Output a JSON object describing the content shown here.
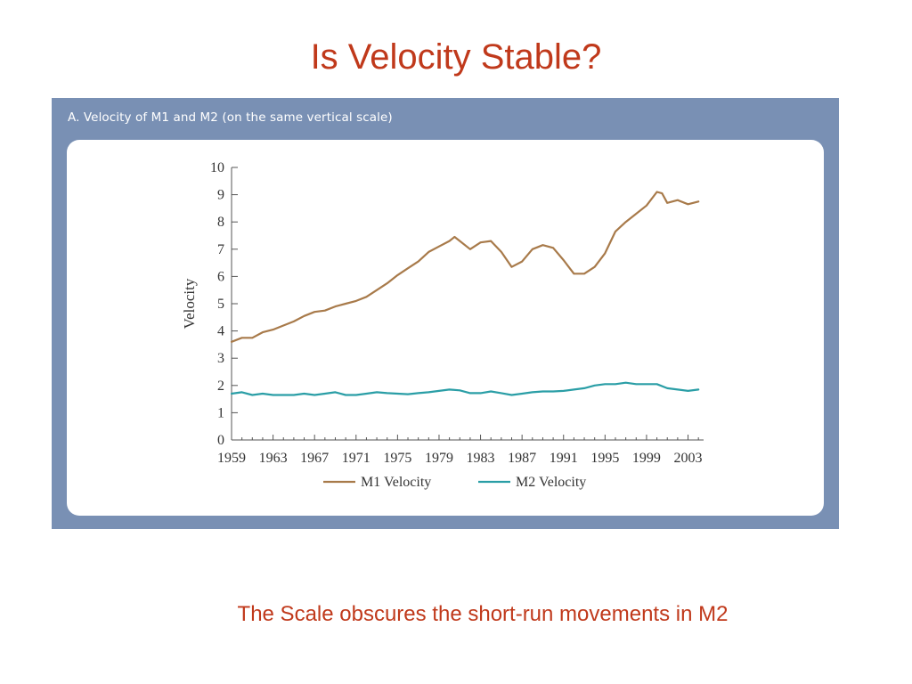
{
  "slide": {
    "title": "Is Velocity Stable?",
    "caption": "The Scale obscures the short-run movements in M2"
  },
  "colors": {
    "title_text": "#c0391b",
    "frame_background": "#7990b4",
    "m1_line": "#a87a4a",
    "m2_line": "#2a9ea6",
    "axis": "#555555"
  },
  "chart_data": {
    "type": "line",
    "title": "A. Velocity of M1 and M2 (on the same vertical scale)",
    "xlabel": "",
    "ylabel": "Velocity",
    "ylim": [
      0,
      10
    ],
    "xlim": [
      1959,
      2004.5
    ],
    "yticks": [
      "0",
      "1",
      "2",
      "3",
      "4",
      "5",
      "6",
      "7",
      "8",
      "9",
      "10"
    ],
    "xticks": [
      "1959",
      "1963",
      "1967",
      "1971",
      "1975",
      "1979",
      "1983",
      "1987",
      "1991",
      "1995",
      "1999",
      "2003"
    ],
    "grid": false,
    "legend_position": "bottom",
    "series": [
      {
        "name": "M1 Velocity",
        "x": [
          1959,
          1960,
          1961,
          1962,
          1963,
          1964,
          1965,
          1966,
          1967,
          1968,
          1969,
          1970,
          1971,
          1972,
          1973,
          1974,
          1975,
          1976,
          1977,
          1978,
          1979,
          1980,
          1980.5,
          1981,
          1982,
          1983,
          1984,
          1985,
          1986,
          1987,
          1988,
          1989,
          1990,
          1991,
          1992,
          1993,
          1994,
          1995,
          1996,
          1997,
          1998,
          1999,
          2000,
          2000.5,
          2001,
          2002,
          2003,
          2004
        ],
        "y": [
          3.6,
          3.75,
          3.75,
          3.95,
          4.05,
          4.2,
          4.35,
          4.55,
          4.7,
          4.75,
          4.9,
          5.0,
          5.1,
          5.25,
          5.5,
          5.75,
          6.05,
          6.3,
          6.55,
          6.9,
          7.1,
          7.3,
          7.45,
          7.3,
          7.0,
          7.25,
          7.3,
          6.9,
          6.35,
          6.55,
          7.0,
          7.15,
          7.05,
          6.6,
          6.1,
          6.1,
          6.35,
          6.85,
          7.65,
          8.0,
          8.3,
          8.6,
          9.1,
          9.05,
          8.7,
          8.8,
          8.65,
          8.75
        ]
      },
      {
        "name": "M2 Velocity",
        "x": [
          1959,
          1960,
          1961,
          1962,
          1963,
          1964,
          1965,
          1966,
          1967,
          1968,
          1969,
          1970,
          1971,
          1972,
          1973,
          1974,
          1975,
          1976,
          1977,
          1978,
          1979,
          1980,
          1981,
          1982,
          1983,
          1984,
          1985,
          1986,
          1987,
          1988,
          1989,
          1990,
          1991,
          1992,
          1993,
          1994,
          1995,
          1996,
          1997,
          1998,
          1999,
          2000,
          2001,
          2002,
          2003,
          2004
        ],
        "y": [
          1.7,
          1.75,
          1.65,
          1.7,
          1.65,
          1.65,
          1.65,
          1.7,
          1.65,
          1.7,
          1.75,
          1.65,
          1.65,
          1.7,
          1.75,
          1.72,
          1.7,
          1.68,
          1.72,
          1.75,
          1.8,
          1.85,
          1.82,
          1.72,
          1.72,
          1.78,
          1.72,
          1.65,
          1.7,
          1.75,
          1.78,
          1.78,
          1.8,
          1.85,
          1.9,
          2.0,
          2.05,
          2.05,
          2.1,
          2.05,
          2.05,
          2.05,
          1.9,
          1.85,
          1.8,
          1.85
        ]
      }
    ]
  }
}
